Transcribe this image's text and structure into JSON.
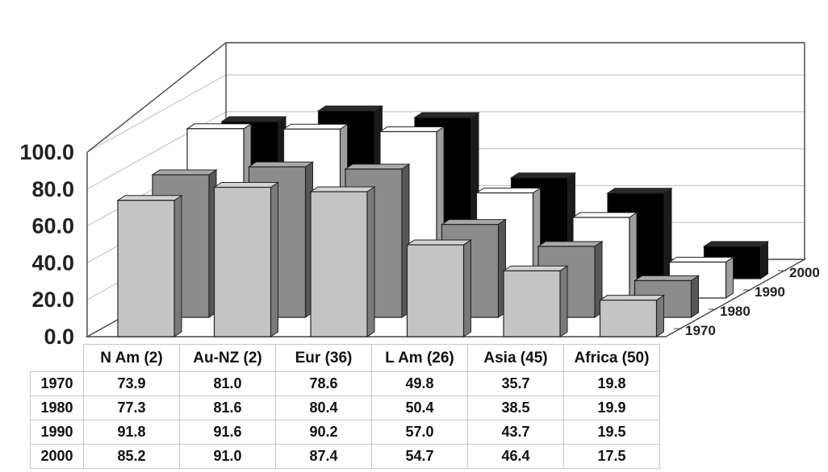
{
  "chart_data": {
    "type": "bar",
    "categories": [
      "N Am (2)",
      "Au-NZ (2)",
      "Eur (36)",
      "L Am (26)",
      "Asia (45)",
      "Africa (50)"
    ],
    "series": [
      {
        "name": "1970",
        "values": [
          73.9,
          81.0,
          78.6,
          49.8,
          35.7,
          19.8
        ],
        "color": "#c4c4c4"
      },
      {
        "name": "1980",
        "values": [
          77.3,
          81.6,
          80.4,
          50.4,
          38.5,
          19.9
        ],
        "color": "#8c8c8c"
      },
      {
        "name": "1990",
        "values": [
          91.8,
          91.6,
          90.2,
          57.0,
          43.7,
          19.5
        ],
        "color": "#ffffff"
      },
      {
        "name": "2000",
        "values": [
          85.2,
          91.0,
          87.4,
          54.7,
          46.4,
          17.5
        ],
        "color": "#000000"
      }
    ],
    "ylim": [
      0,
      100
    ],
    "yticks": [
      "0.0",
      "20.0",
      "40.0",
      "60.0",
      "80.0",
      "100.0"
    ],
    "table": {
      "rows": [
        {
          "year": "1970",
          "values": [
            "73.9",
            "81.0",
            "78.6",
            "49.8",
            "35.7",
            "19.8"
          ]
        },
        {
          "year": "1980",
          "values": [
            "77.3",
            "81.6",
            "80.4",
            "50.4",
            "38.5",
            "19.9"
          ]
        },
        {
          "year": "1990",
          "values": [
            "91.8",
            "91.6",
            "90.2",
            "57.0",
            "43.7",
            "19.5"
          ]
        },
        {
          "year": "2000",
          "values": [
            "85.2",
            "91.0",
            "87.4",
            "54.7",
            "46.4",
            "17.5"
          ]
        }
      ]
    }
  }
}
